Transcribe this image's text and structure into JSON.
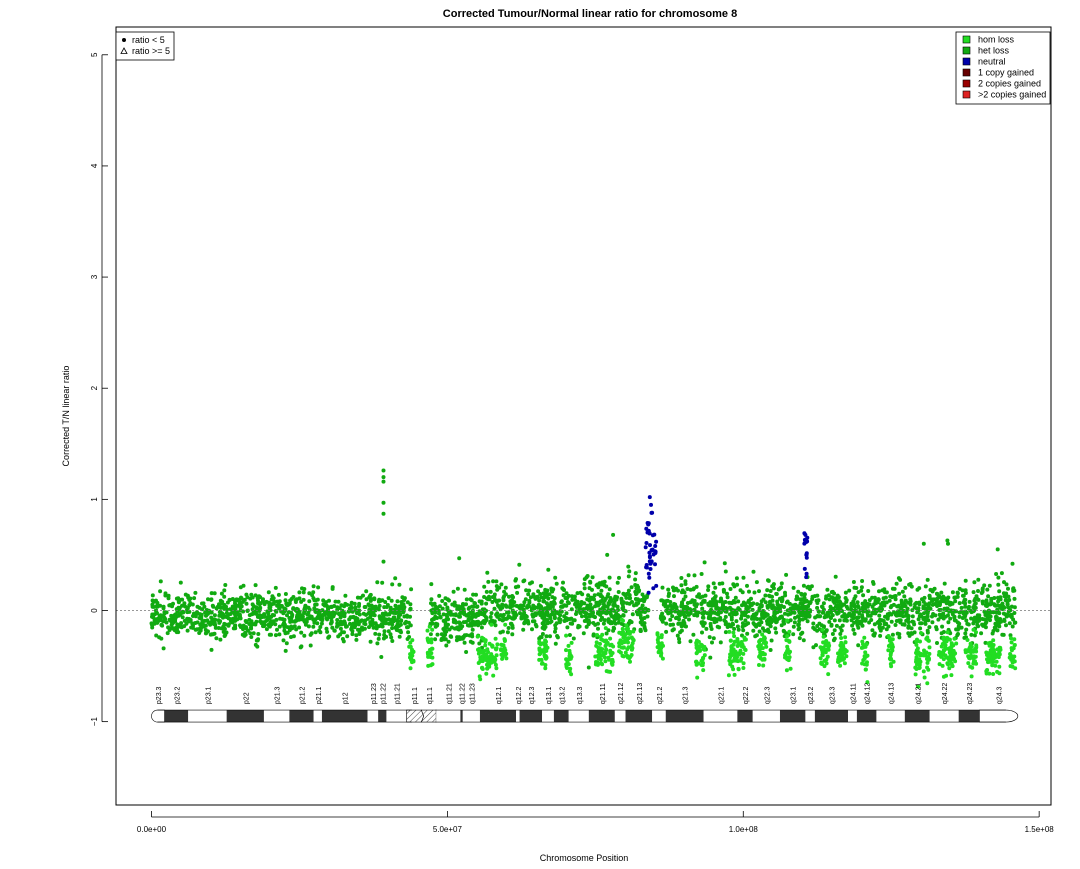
{
  "chart_data": {
    "type": "scatter",
    "title": "Corrected Tumour/Normal linear ratio for chromosome  8",
    "xlabel": "Chromosome Position",
    "ylabel": "Corrected T/N linear ratio",
    "xlim": [
      -6000000,
      152000000
    ],
    "ylim": [
      -1.75,
      5.25
    ],
    "x_ticks": [
      0,
      50000000,
      100000000,
      150000000
    ],
    "x_tick_labels": [
      "0.0e+00",
      "5.0e+07",
      "1.0e+08",
      "1.5e+08"
    ],
    "y_ticks": [
      -1,
      0,
      1,
      2,
      3,
      4,
      5
    ],
    "y_tick_labels": [
      "−1",
      "0",
      "1",
      "2",
      "3",
      "4",
      "5"
    ],
    "reference_line_y": 0,
    "shape_legend": {
      "placement": "top-left",
      "entries": [
        {
          "label": "ratio < 5",
          "symbol": "filled-circle"
        },
        {
          "label": "ratio >= 5",
          "symbol": "open-triangle"
        }
      ]
    },
    "color_legend": {
      "placement": "top-right",
      "entries": [
        {
          "label": "hom loss",
          "color": "#22dd22"
        },
        {
          "label": "het loss",
          "color": "#11aa11"
        },
        {
          "label": "neutral",
          "color": "#0000aa"
        },
        {
          "label": "1 copy gained",
          "color": "#660000"
        },
        {
          "label": "2 copies gained",
          "color": "#990000"
        },
        {
          "label": ">2 copies gained",
          "color": "#dd2222"
        }
      ]
    },
    "series": [
      {
        "state": "het loss",
        "color": "#11aa11",
        "segments": [
          {
            "x_range": [
              0,
              44000000
            ],
            "mean": -0.05,
            "sd": 0.11
          },
          {
            "x_range": [
              47000000,
              56000000
            ],
            "mean": -0.08,
            "sd": 0.11
          },
          {
            "x_range": [
              56000000,
              84000000
            ],
            "mean": 0.02,
            "sd": 0.12
          },
          {
            "x_range": [
              86000000,
              146000000
            ],
            "mean": 0.0,
            "sd": 0.12
          }
        ],
        "outliers": [
          {
            "x": 39200000,
            "y": 1.26
          },
          {
            "x": 39200000,
            "y": 1.2
          },
          {
            "x": 39200000,
            "y": 1.16
          },
          {
            "x": 39200000,
            "y": 0.97
          },
          {
            "x": 39200000,
            "y": 0.87
          },
          {
            "x": 39200000,
            "y": 0.44
          },
          {
            "x": 52000000,
            "y": 0.47
          },
          {
            "x": 77000000,
            "y": 0.5
          },
          {
            "x": 78000000,
            "y": 0.68
          },
          {
            "x": 130500000,
            "y": 0.6
          },
          {
            "x": 134500000,
            "y": 0.63
          },
          {
            "x": 134600000,
            "y": 0.6
          },
          {
            "x": 143000000,
            "y": 0.55
          },
          {
            "x": 145500000,
            "y": 0.42
          }
        ]
      },
      {
        "state": "hom loss",
        "color": "#22dd22",
        "segments": [
          {
            "x_range": [
              43500000,
              44300000
            ],
            "mean": -0.4,
            "sd": 0.08
          },
          {
            "x_range": [
              46500000,
              47500000
            ],
            "mean": -0.38,
            "sd": 0.1
          },
          {
            "x_range": [
              55000000,
              58500000
            ],
            "mean": -0.4,
            "sd": 0.09
          },
          {
            "x_range": [
              59000000,
              60000000
            ],
            "mean": -0.32,
            "sd": 0.08
          },
          {
            "x_range": [
              65500000,
              67000000
            ],
            "mean": -0.35,
            "sd": 0.08
          },
          {
            "x_range": [
              70000000,
              71000000
            ],
            "mean": -0.42,
            "sd": 0.08
          },
          {
            "x_range": [
              75000000,
              78000000
            ],
            "mean": -0.36,
            "sd": 0.09
          },
          {
            "x_range": [
              79000000,
              81500000
            ],
            "mean": -0.28,
            "sd": 0.09
          },
          {
            "x_range": [
              85500000,
              86500000
            ],
            "mean": -0.35,
            "sd": 0.08
          },
          {
            "x_range": [
              92000000,
              93500000
            ],
            "mean": -0.38,
            "sd": 0.08
          },
          {
            "x_range": [
              97500000,
              100500000
            ],
            "mean": -0.38,
            "sd": 0.09
          },
          {
            "x_range": [
              102500000,
              104000000
            ],
            "mean": -0.36,
            "sd": 0.08
          },
          {
            "x_range": [
              107000000,
              108000000
            ],
            "mean": -0.35,
            "sd": 0.08
          },
          {
            "x_range": [
              113000000,
              114500000
            ],
            "mean": -0.38,
            "sd": 0.08
          },
          {
            "x_range": [
              116000000,
              117500000
            ],
            "mean": -0.36,
            "sd": 0.08
          },
          {
            "x_range": [
              120000000,
              121000000
            ],
            "mean": -0.4,
            "sd": 0.08
          },
          {
            "x_range": [
              124500000,
              125500000
            ],
            "mean": -0.35,
            "sd": 0.08
          },
          {
            "x_range": [
              129000000,
              131500000
            ],
            "mean": -0.4,
            "sd": 0.09
          },
          {
            "x_range": [
              133000000,
              136000000
            ],
            "mean": -0.38,
            "sd": 0.09
          },
          {
            "x_range": [
              137500000,
              139500000
            ],
            "mean": -0.38,
            "sd": 0.09
          },
          {
            "x_range": [
              141000000,
              143500000
            ],
            "mean": -0.42,
            "sd": 0.08
          },
          {
            "x_range": [
              145000000,
              146000000
            ],
            "mean": -0.42,
            "sd": 0.08
          }
        ]
      },
      {
        "state": "neutral",
        "color": "#0000aa",
        "segments": [
          {
            "x_range": [
              83500000,
              85300000
            ],
            "mean": 0.5,
            "sd": 0.14
          },
          {
            "x_range": [
              110300000,
              110900000
            ],
            "mean": 0.55,
            "sd": 0.1
          }
        ],
        "outliers": [
          {
            "x": 84200000,
            "y": 1.02
          },
          {
            "x": 84400000,
            "y": 0.95
          },
          {
            "x": 84600000,
            "y": 0.88
          },
          {
            "x": 84000000,
            "y": 0.16
          },
          {
            "x": 84800000,
            "y": 0.2
          },
          {
            "x": 110500000,
            "y": 0.68
          },
          {
            "x": 110600000,
            "y": 0.64
          },
          {
            "x": 110700000,
            "y": 0.33
          }
        ]
      }
    ],
    "ideogram": {
      "y": -0.95,
      "centromere_x": [
        44000000,
        48000000
      ],
      "bands": [
        {
          "name": "p23.3",
          "start": 0,
          "end": 2200000,
          "stain": "gneg"
        },
        {
          "name": "p23.2",
          "start": 2200000,
          "end": 6200000,
          "stain": "gpos"
        },
        {
          "name": "p23.1",
          "start": 6200000,
          "end": 12700000,
          "stain": "gneg"
        },
        {
          "name": "p22",
          "start": 12700000,
          "end": 19000000,
          "stain": "gpos"
        },
        {
          "name": "p21.3",
          "start": 19000000,
          "end": 23300000,
          "stain": "gneg"
        },
        {
          "name": "p21.2",
          "start": 23300000,
          "end": 27400000,
          "stain": "gpos"
        },
        {
          "name": "p21.1",
          "start": 27400000,
          "end": 28800000,
          "stain": "gneg"
        },
        {
          "name": "p12",
          "start": 28800000,
          "end": 36500000,
          "stain": "gpos"
        },
        {
          "name": "p11.23",
          "start": 36500000,
          "end": 38300000,
          "stain": "gneg"
        },
        {
          "name": "p11.22",
          "start": 38300000,
          "end": 39700000,
          "stain": "gpos"
        },
        {
          "name": "p11.21",
          "start": 39700000,
          "end": 43100000,
          "stain": "gneg"
        },
        {
          "name": "p11.1",
          "start": 43100000,
          "end": 45600000,
          "stain": "acen"
        },
        {
          "name": "q11.1",
          "start": 45600000,
          "end": 48100000,
          "stain": "acen"
        },
        {
          "name": "q11.21",
          "start": 48100000,
          "end": 52200000,
          "stain": "gneg"
        },
        {
          "name": "q11.22",
          "start": 52200000,
          "end": 52600000,
          "stain": "gpos"
        },
        {
          "name": "q11.23",
          "start": 52600000,
          "end": 55500000,
          "stain": "gneg"
        },
        {
          "name": "q12.1",
          "start": 55500000,
          "end": 61600000,
          "stain": "gpos"
        },
        {
          "name": "q12.2",
          "start": 61600000,
          "end": 62200000,
          "stain": "gneg"
        },
        {
          "name": "q12.3",
          "start": 62200000,
          "end": 66000000,
          "stain": "gpos"
        },
        {
          "name": "q13.1",
          "start": 66000000,
          "end": 68000000,
          "stain": "gneg"
        },
        {
          "name": "q13.2",
          "start": 68000000,
          "end": 70500000,
          "stain": "gpos"
        },
        {
          "name": "q13.3",
          "start": 70500000,
          "end": 73900000,
          "stain": "gneg"
        },
        {
          "name": "q21.11",
          "start": 73900000,
          "end": 78300000,
          "stain": "gpos"
        },
        {
          "name": "q21.12",
          "start": 78300000,
          "end": 80100000,
          "stain": "gneg"
        },
        {
          "name": "q21.13",
          "start": 80100000,
          "end": 84600000,
          "stain": "gpos"
        },
        {
          "name": "q21.2",
          "start": 84600000,
          "end": 86900000,
          "stain": "gneg"
        },
        {
          "name": "q21.3",
          "start": 86900000,
          "end": 93300000,
          "stain": "gpos"
        },
        {
          "name": "q22.1",
          "start": 93300000,
          "end": 99000000,
          "stain": "gneg"
        },
        {
          "name": "q22.2",
          "start": 99000000,
          "end": 101600000,
          "stain": "gpos"
        },
        {
          "name": "q22.3",
          "start": 101600000,
          "end": 106200000,
          "stain": "gneg"
        },
        {
          "name": "q23.1",
          "start": 106200000,
          "end": 110500000,
          "stain": "gpos"
        },
        {
          "name": "q23.2",
          "start": 110500000,
          "end": 112100000,
          "stain": "gneg"
        },
        {
          "name": "q23.3",
          "start": 112100000,
          "end": 117700000,
          "stain": "gpos"
        },
        {
          "name": "q24.11",
          "start": 117700000,
          "end": 119200000,
          "stain": "gneg"
        },
        {
          "name": "q24.12",
          "start": 119200000,
          "end": 122500000,
          "stain": "gpos"
        },
        {
          "name": "q24.13",
          "start": 122500000,
          "end": 127300000,
          "stain": "gneg"
        },
        {
          "name": "q24.21",
          "start": 127300000,
          "end": 131500000,
          "stain": "gpos"
        },
        {
          "name": "q24.22",
          "start": 131500000,
          "end": 136400000,
          "stain": "gneg"
        },
        {
          "name": "q24.23",
          "start": 136400000,
          "end": 139900000,
          "stain": "gpos"
        },
        {
          "name": "q24.3",
          "start": 139900000,
          "end": 146400000,
          "stain": "gneg"
        }
      ]
    }
  }
}
